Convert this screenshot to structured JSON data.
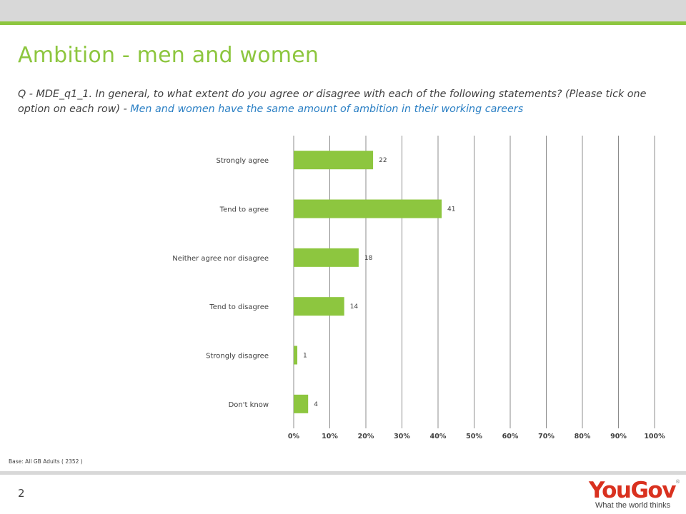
{
  "title": "Ambition - men and women",
  "question": {
    "prefix": "Q - MDE_q1_1. In general, to what extent do you agree or disagree with each of the following statements? (Please tick one option on each row) - ",
    "statement": "Men and women have the same amount of ambition in their working careers"
  },
  "base_note": "Base: All GB Adults ( 2352 )",
  "page_number": "2",
  "logo": {
    "word": "YouGov",
    "registered": "®",
    "tagline": "What the world thinks"
  },
  "colors": {
    "accent": "#8dc63f",
    "bar": "#8dc63f",
    "statement": "#2a7fc4",
    "logo": "#d9311f",
    "gridline": "#8c8c8c"
  },
  "chart_data": {
    "type": "bar",
    "orientation": "horizontal",
    "categories": [
      "Strongly agree",
      "Tend to agree",
      "Neither agree nor disagree",
      "Tend to disagree",
      "Strongly disagree",
      "Don't know"
    ],
    "values": [
      22,
      41,
      18,
      14,
      1,
      4
    ],
    "xlim": [
      0,
      100
    ],
    "xticks": [
      "0%",
      "10%",
      "20%",
      "30%",
      "40%",
      "50%",
      "60%",
      "70%",
      "80%",
      "90%",
      "100%"
    ],
    "grid": true,
    "legend": false
  }
}
